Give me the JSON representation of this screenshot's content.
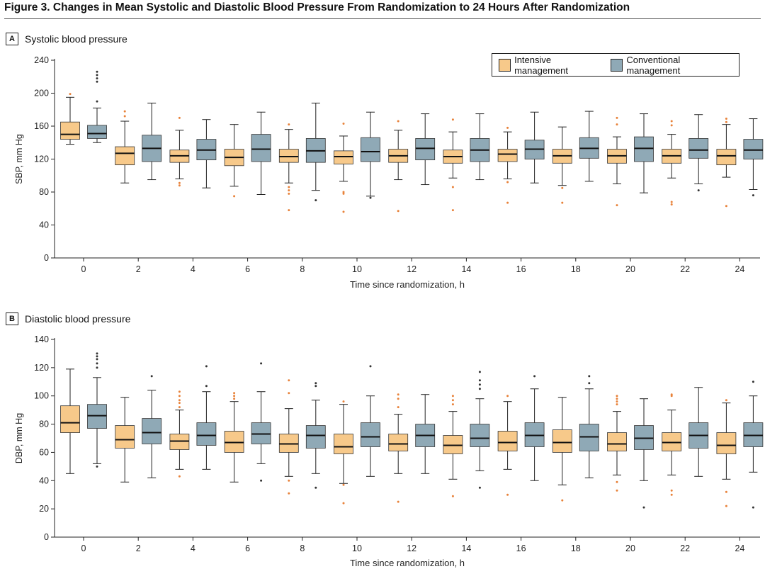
{
  "figure": {
    "title": "Figure 3. Changes in Mean Systolic and Diastolic Blood Pressure From Randomization to 24 Hours After Randomization"
  },
  "colors": {
    "intensive": "#f7c98a",
    "conventional": "#8fa9b6",
    "intensive_outlier": "#e8823a",
    "conventional_outlier": "#333333"
  },
  "legend": {
    "intensive": "Intensive management",
    "conventional": "Conventional management"
  },
  "chart_data": [
    {
      "type": "box",
      "panel": "A",
      "title": "Systolic blood pressure",
      "xlabel": "Time since randomization, h",
      "ylabel": "SBP, mm Hg",
      "ylim": [
        0,
        240
      ],
      "yticks": [
        0,
        40,
        80,
        120,
        160,
        200,
        240
      ],
      "categories": [
        "0",
        "2",
        "4",
        "6",
        "8",
        "10",
        "12",
        "14",
        "16",
        "18",
        "20",
        "22",
        "24"
      ],
      "series": [
        {
          "name": "Intensive management",
          "boxes": [
            {
              "min": 138,
              "q1": 144,
              "median": 150,
              "q3": 165,
              "max": 195,
              "outliers": [
                199
              ]
            },
            {
              "min": 91,
              "q1": 113,
              "median": 127,
              "q3": 135,
              "max": 166,
              "outliers": [
                172,
                178
              ]
            },
            {
              "min": 96,
              "q1": 116,
              "median": 124,
              "q3": 131,
              "max": 155,
              "outliers": [
                88,
                91,
                170
              ]
            },
            {
              "min": 87,
              "q1": 112,
              "median": 122,
              "q3": 132,
              "max": 162,
              "outliers": [
                75
              ]
            },
            {
              "min": 91,
              "q1": 116,
              "median": 123,
              "q3": 132,
              "max": 156,
              "outliers": [
                58,
                78,
                82,
                86,
                162
              ]
            },
            {
              "min": 93,
              "q1": 114,
              "median": 123,
              "q3": 130,
              "max": 148,
              "outliers": [
                56,
                78,
                80,
                163
              ]
            },
            {
              "min": 95,
              "q1": 116,
              "median": 124,
              "q3": 132,
              "max": 155,
              "outliers": [
                57,
                166
              ]
            },
            {
              "min": 97,
              "q1": 115,
              "median": 123,
              "q3": 131,
              "max": 153,
              "outliers": [
                58,
                86,
                168
              ]
            },
            {
              "min": 96,
              "q1": 117,
              "median": 126,
              "q3": 132,
              "max": 153,
              "outliers": [
                67,
                92,
                158
              ]
            },
            {
              "min": 88,
              "q1": 115,
              "median": 124,
              "q3": 132,
              "max": 159,
              "outliers": [
                67,
                85
              ]
            },
            {
              "min": 90,
              "q1": 115,
              "median": 124,
              "q3": 132,
              "max": 147,
              "outliers": [
                64,
                162,
                170
              ]
            },
            {
              "min": 97,
              "q1": 115,
              "median": 124,
              "q3": 132,
              "max": 150,
              "outliers": [
                65,
                68,
                161,
                166
              ]
            },
            {
              "min": 98,
              "q1": 113,
              "median": 124,
              "q3": 132,
              "max": 162,
              "outliers": [
                63,
                165,
                169
              ]
            }
          ]
        },
        {
          "name": "Conventional management",
          "boxes": [
            {
              "min": 140,
              "q1": 145,
              "median": 151,
              "q3": 161,
              "max": 182,
              "outliers": [
                190,
                214,
                218,
                222,
                226
              ]
            },
            {
              "min": 95,
              "q1": 117,
              "median": 133,
              "q3": 149,
              "max": 188,
              "outliers": []
            },
            {
              "min": 85,
              "q1": 119,
              "median": 131,
              "q3": 144,
              "max": 168,
              "outliers": []
            },
            {
              "min": 77,
              "q1": 117,
              "median": 132,
              "q3": 150,
              "max": 177,
              "outliers": []
            },
            {
              "min": 82,
              "q1": 116,
              "median": 130,
              "q3": 145,
              "max": 188,
              "outliers": [
                70
              ]
            },
            {
              "min": 75,
              "q1": 117,
              "median": 129,
              "q3": 146,
              "max": 177,
              "outliers": [
                73
              ]
            },
            {
              "min": 89,
              "q1": 119,
              "median": 133,
              "q3": 145,
              "max": 175,
              "outliers": []
            },
            {
              "min": 95,
              "q1": 117,
              "median": 131,
              "q3": 145,
              "max": 175,
              "outliers": []
            },
            {
              "min": 91,
              "q1": 120,
              "median": 132,
              "q3": 143,
              "max": 177,
              "outliers": []
            },
            {
              "min": 93,
              "q1": 121,
              "median": 133,
              "q3": 146,
              "max": 178,
              "outliers": []
            },
            {
              "min": 79,
              "q1": 117,
              "median": 133,
              "q3": 147,
              "max": 175,
              "outliers": []
            },
            {
              "min": 90,
              "q1": 121,
              "median": 131,
              "q3": 145,
              "max": 174,
              "outliers": [
                82
              ]
            },
            {
              "min": 83,
              "q1": 120,
              "median": 131,
              "q3": 144,
              "max": 169,
              "outliers": [
                76
              ]
            }
          ]
        }
      ]
    },
    {
      "type": "box",
      "panel": "B",
      "title": "Diastolic blood pressure",
      "xlabel": "Time since randomization, h",
      "ylabel": "DBP, mm Hg",
      "ylim": [
        0,
        140
      ],
      "yticks": [
        0,
        20,
        40,
        60,
        80,
        100,
        120,
        140
      ],
      "categories": [
        "0",
        "2",
        "4",
        "6",
        "8",
        "10",
        "12",
        "14",
        "16",
        "18",
        "20",
        "22",
        "24"
      ],
      "series": [
        {
          "name": "Intensive management",
          "boxes": [
            {
              "min": 45,
              "q1": 74,
              "median": 81,
              "q3": 93,
              "max": 119,
              "outliers": []
            },
            {
              "min": 39,
              "q1": 63,
              "median": 69,
              "q3": 79,
              "max": 99,
              "outliers": []
            },
            {
              "min": 48,
              "q1": 62,
              "median": 68,
              "q3": 73,
              "max": 90,
              "outliers": [
                43,
                92,
                95,
                97,
                100,
                103
              ]
            },
            {
              "min": 39,
              "q1": 60,
              "median": 67,
              "q3": 75,
              "max": 96,
              "outliers": [
                98,
                100,
                102
              ]
            },
            {
              "min": 43,
              "q1": 60,
              "median": 66,
              "q3": 73,
              "max": 91,
              "outliers": [
                31,
                40,
                102,
                111
              ]
            },
            {
              "min": 38,
              "q1": 59,
              "median": 64,
              "q3": 73,
              "max": 94,
              "outliers": [
                24,
                37,
                96
              ]
            },
            {
              "min": 45,
              "q1": 61,
              "median": 66,
              "q3": 73,
              "max": 87,
              "outliers": [
                25,
                92,
                98,
                101
              ]
            },
            {
              "min": 41,
              "q1": 59,
              "median": 65,
              "q3": 72,
              "max": 89,
              "outliers": [
                29,
                94,
                97,
                100
              ]
            },
            {
              "min": 48,
              "q1": 61,
              "median": 67,
              "q3": 75,
              "max": 96,
              "outliers": [
                30,
                100
              ]
            },
            {
              "min": 37,
              "q1": 60,
              "median": 67,
              "q3": 76,
              "max": 99,
              "outliers": [
                26
              ]
            },
            {
              "min": 44,
              "q1": 61,
              "median": 66,
              "q3": 74,
              "max": 89,
              "outliers": [
                33,
                39,
                94,
                96,
                98,
                100
              ]
            },
            {
              "min": 44,
              "q1": 61,
              "median": 67,
              "q3": 74,
              "max": 90,
              "outliers": [
                30,
                33,
                100,
                101
              ]
            },
            {
              "min": 41,
              "q1": 59,
              "median": 65,
              "q3": 74,
              "max": 95,
              "outliers": [
                22,
                32,
                97
              ]
            }
          ]
        },
        {
          "name": "Conventional management",
          "boxes": [
            {
              "min": 52,
              "q1": 77,
              "median": 86,
              "q3": 94,
              "max": 113,
              "outliers": [
                50,
                120,
                123,
                126,
                128,
                130
              ]
            },
            {
              "min": 42,
              "q1": 66,
              "median": 74,
              "q3": 84,
              "max": 104,
              "outliers": [
                114
              ]
            },
            {
              "min": 48,
              "q1": 65,
              "median": 72,
              "q3": 81,
              "max": 103,
              "outliers": [
                107,
                121
              ]
            },
            {
              "min": 52,
              "q1": 66,
              "median": 73,
              "q3": 81,
              "max": 103,
              "outliers": [
                40,
                123
              ]
            },
            {
              "min": 45,
              "q1": 63,
              "median": 72,
              "q3": 79,
              "max": 97,
              "outliers": [
                35,
                107,
                109
              ]
            },
            {
              "min": 43,
              "q1": 64,
              "median": 71,
              "q3": 81,
              "max": 100,
              "outliers": [
                121
              ]
            },
            {
              "min": 45,
              "q1": 64,
              "median": 72,
              "q3": 80,
              "max": 101,
              "outliers": []
            },
            {
              "min": 47,
              "q1": 64,
              "median": 70,
              "q3": 80,
              "max": 98,
              "outliers": [
                35,
                105,
                108,
                111,
                117
              ]
            },
            {
              "min": 40,
              "q1": 64,
              "median": 72,
              "q3": 81,
              "max": 105,
              "outliers": [
                114
              ]
            },
            {
              "min": 42,
              "q1": 61,
              "median": 71,
              "q3": 80,
              "max": 105,
              "outliers": [
                109,
                114
              ]
            },
            {
              "min": 40,
              "q1": 62,
              "median": 70,
              "q3": 79,
              "max": 98,
              "outliers": [
                21
              ]
            },
            {
              "min": 43,
              "q1": 63,
              "median": 72,
              "q3": 81,
              "max": 106,
              "outliers": []
            },
            {
              "min": 46,
              "q1": 64,
              "median": 72,
              "q3": 81,
              "max": 100,
              "outliers": [
                21,
                110
              ]
            }
          ]
        }
      ]
    }
  ]
}
